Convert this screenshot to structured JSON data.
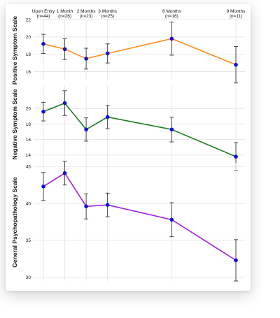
{
  "chart_data": [
    {
      "type": "line",
      "ylabel": "Positive Symptom Scale",
      "ylim": [
        15,
        22
      ],
      "yticks": [
        16,
        18,
        20,
        22
      ],
      "categories": [
        "Upon Entry",
        "1 Month",
        "2 Months",
        "3 Months",
        "6 Months",
        "9 Months"
      ],
      "n_labels": [
        "(n=44)",
        "(n=26)",
        "(n=23)",
        "(n=25)",
        "(n=16)",
        "(n=11)"
      ],
      "x": [
        0,
        1,
        2,
        3,
        6,
        9
      ],
      "values": [
        19.2,
        18.6,
        17.5,
        18.1,
        19.8,
        16.8
      ],
      "err": [
        1.1,
        1.2,
        1.2,
        1.1,
        1.9,
        2.1
      ],
      "color": "#ff8c1a",
      "grid": true
    },
    {
      "type": "line",
      "ylabel": "Negative Symptom Scale",
      "ylim": [
        13,
        23
      ],
      "yticks": [
        14,
        16,
        18,
        20
      ],
      "categories": [
        "Upon Entry",
        "1 Month",
        "2 Months",
        "3 Months",
        "6 Months",
        "9 Months"
      ],
      "x": [
        0,
        1,
        2,
        3,
        6,
        9
      ],
      "values": [
        19.6,
        20.7,
        17.3,
        18.9,
        17.3,
        13.8
      ],
      "err": [
        1.2,
        1.6,
        1.5,
        1.5,
        1.6,
        1.8
      ],
      "color": "#1a7a1a",
      "grid": true
    },
    {
      "type": "line",
      "ylabel": "General Psychopathology Scale",
      "ylim": [
        29.5,
        45.5
      ],
      "yticks": [
        30,
        35,
        40,
        45
      ],
      "categories": [
        "Upon Entry",
        "1 Month",
        "2 Months",
        "3 Months",
        "6 Months",
        "9 Months"
      ],
      "x": [
        0,
        1,
        2,
        3,
        6,
        9
      ],
      "values": [
        42.3,
        44.1,
        39.6,
        39.8,
        37.8,
        32.3
      ],
      "err": [
        1.9,
        1.6,
        1.7,
        1.6,
        2.3,
        2.8
      ],
      "color": "#a020e0",
      "grid": true
    }
  ]
}
